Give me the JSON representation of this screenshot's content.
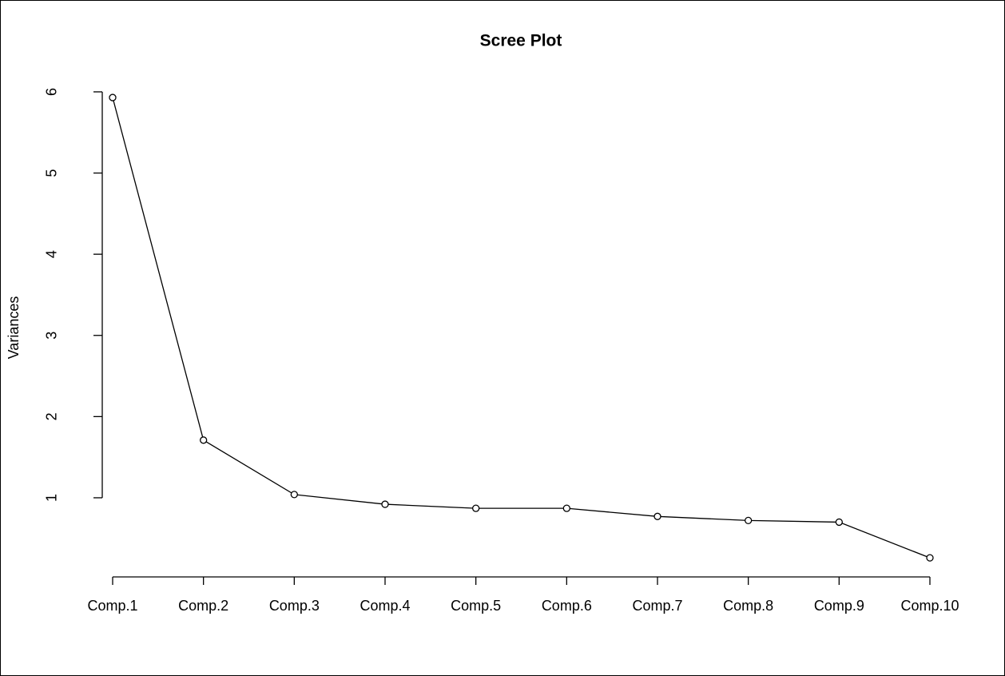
{
  "chart_data": {
    "type": "line",
    "title": "Scree Plot",
    "y_label": "Variances",
    "categories": [
      "Comp.1",
      "Comp.2",
      "Comp.3",
      "Comp.4",
      "Comp.5",
      "Comp.6",
      "Comp.7",
      "Comp.8",
      "Comp.9",
      "Comp.10"
    ],
    "values": [
      5.93,
      1.71,
      1.04,
      0.92,
      0.87,
      0.87,
      0.77,
      0.72,
      0.7,
      0.26
    ],
    "color": "#000000",
    "ylim": [
      0.03,
      6.16
    ],
    "yticks": [
      1,
      2,
      3,
      4,
      5,
      6
    ],
    "grid": false
  }
}
